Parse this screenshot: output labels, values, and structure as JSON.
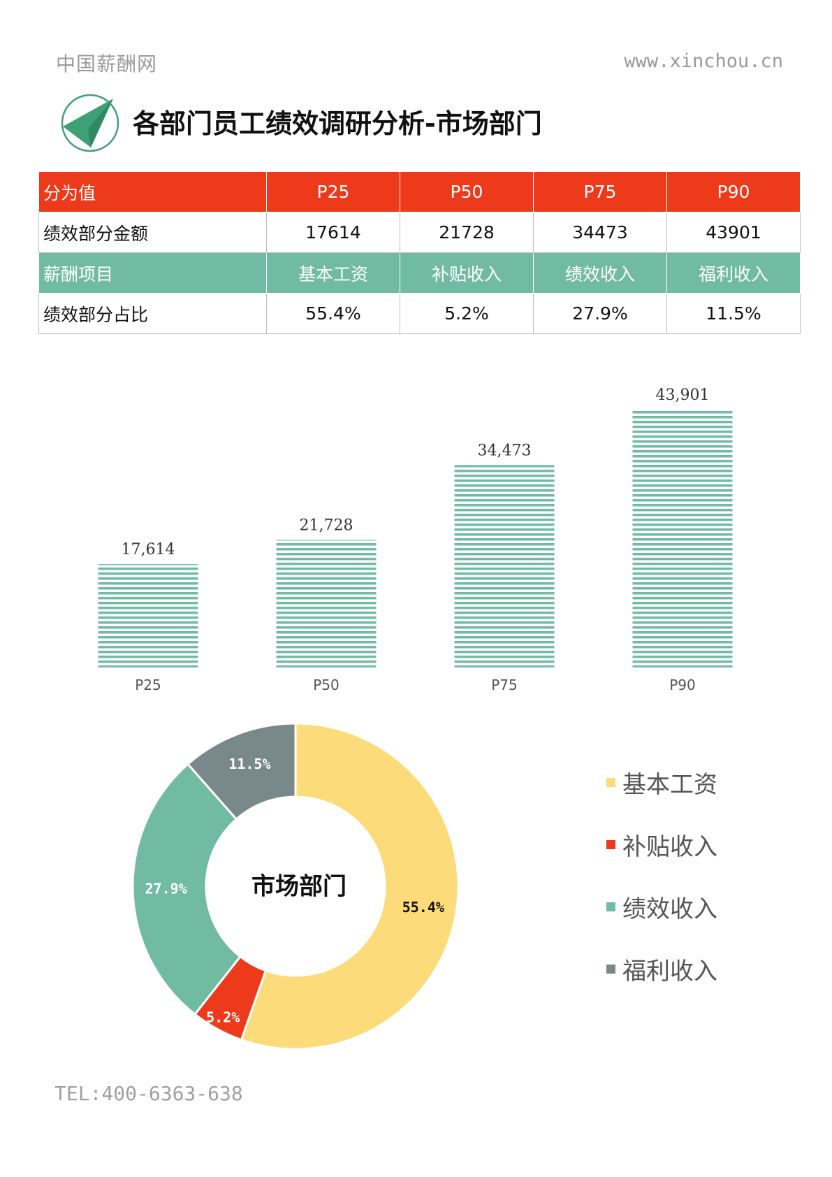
{
  "header": {
    "brand": "中国薪酬网",
    "site": "www.xinchou.cn",
    "title": "各部门员工绩效调研分析-市场部门"
  },
  "colors": {
    "red": "#ed3a1b",
    "green": "#72bba3",
    "yellow": "#fcdc7a",
    "gray": "#79898a",
    "logo_green": "#3f9f77"
  },
  "table": {
    "rows": [
      {
        "label": "分为值",
        "cells": [
          "P25",
          "P50",
          "P75",
          "P90"
        ]
      },
      {
        "label": "绩效部分金额",
        "cells": [
          "17614",
          "21728",
          "34473",
          "43901"
        ]
      },
      {
        "label": "薪酬项目",
        "cells": [
          "基本工资",
          "补贴收入",
          "绩效收入",
          "福利收入"
        ]
      },
      {
        "label": "绩效部分占比",
        "cells": [
          "55.4%",
          "5.2%",
          "27.9%",
          "11.5%"
        ]
      }
    ]
  },
  "chart_data": [
    {
      "type": "bar",
      "categories": [
        "P25",
        "P50",
        "P75",
        "P90"
      ],
      "values": [
        17614,
        21728,
        34473,
        43901
      ],
      "value_labels": [
        "17,614",
        "21,728",
        "34,473",
        "43,901"
      ],
      "color": "#72bba3",
      "ylim": [
        0,
        50000
      ],
      "grid": false
    },
    {
      "type": "pie",
      "center_label": "市场部门",
      "categories": [
        "基本工资",
        "补贴收入",
        "绩效收入",
        "福利收入"
      ],
      "values": [
        55.4,
        5.2,
        27.9,
        11.5
      ],
      "value_labels": [
        "55.4%",
        "5.2%",
        "27.9%",
        "11.5%"
      ],
      "colors": [
        "#fcdc7a",
        "#ed3a1b",
        "#72bba3",
        "#79898a"
      ],
      "legend": "right"
    }
  ],
  "footer": {
    "tel": "TEL:400-6363-638"
  }
}
